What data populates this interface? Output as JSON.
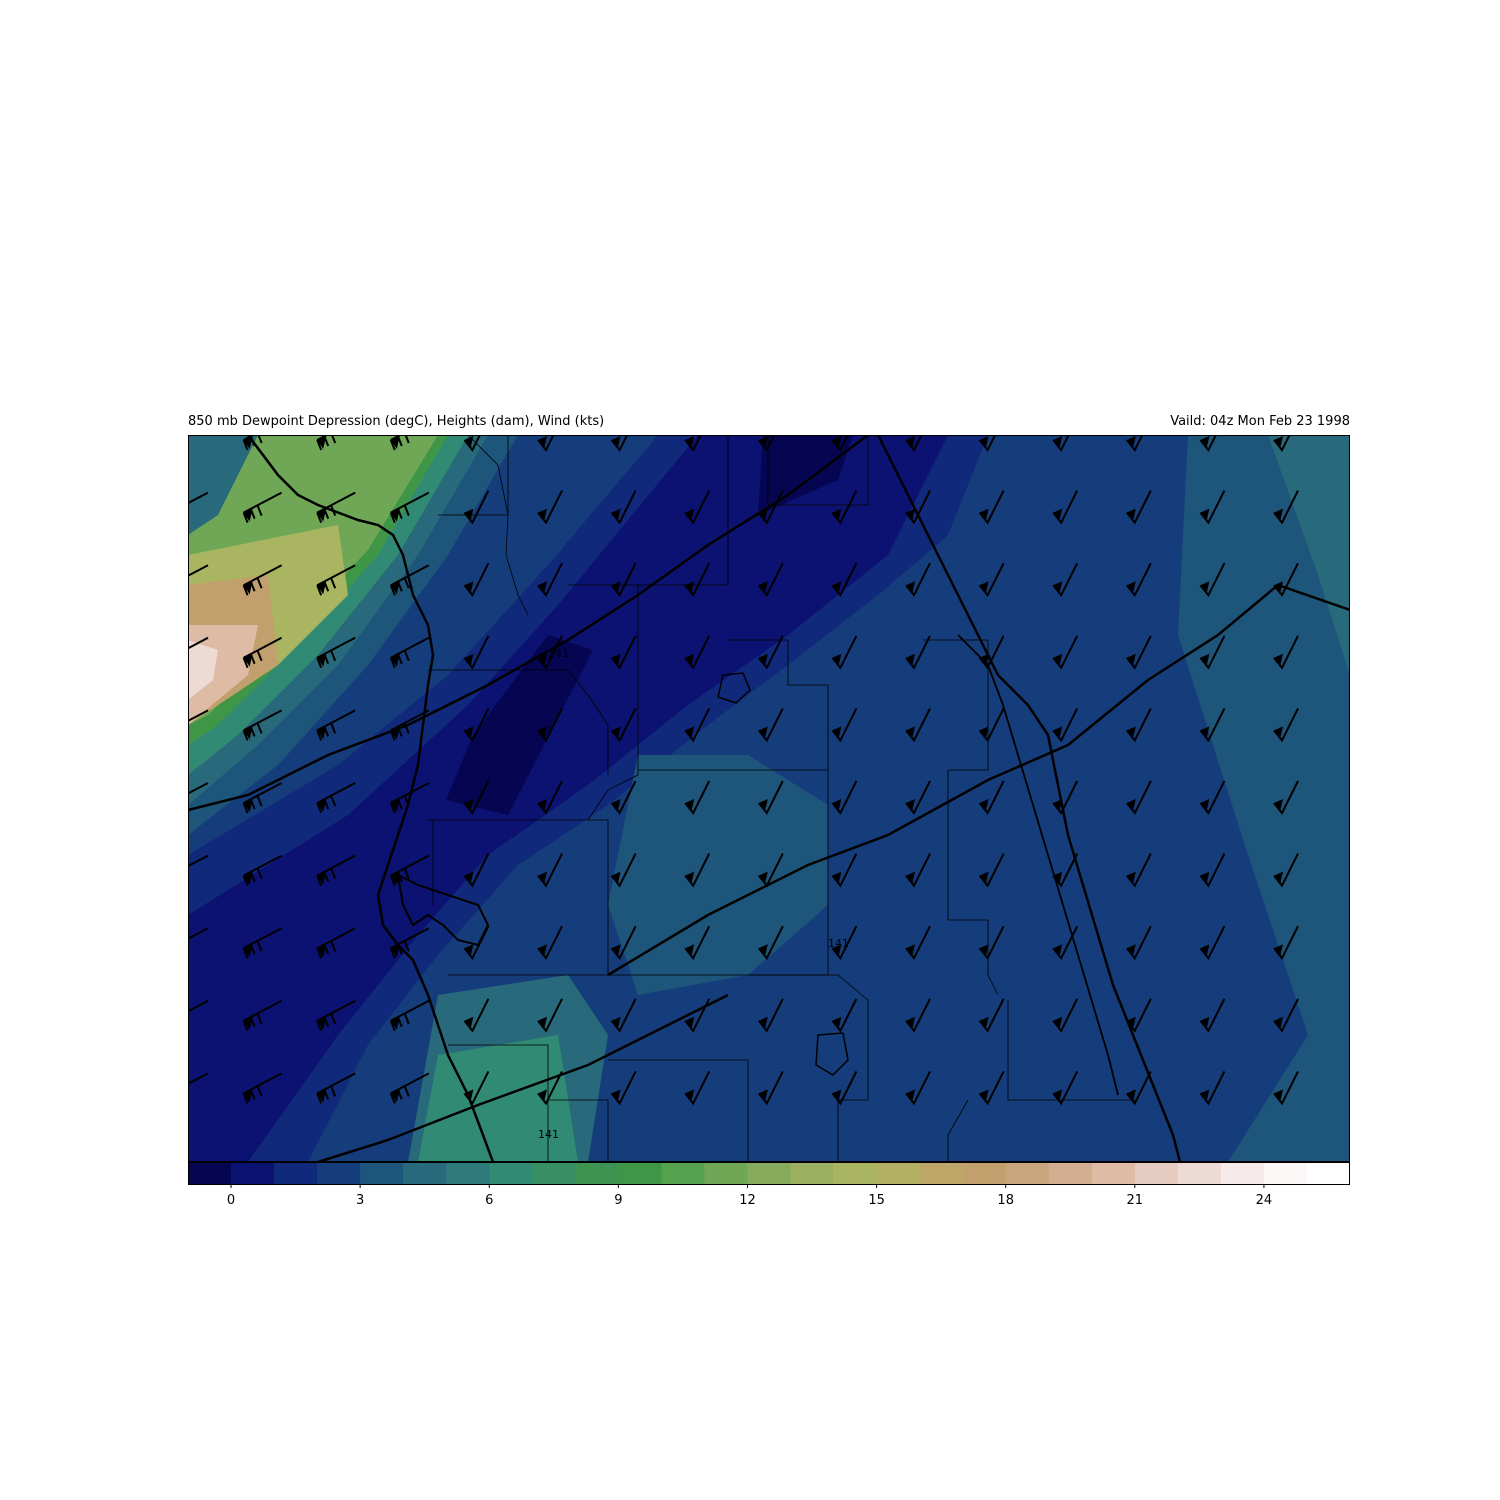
{
  "header": {
    "title_left": "850 mb Dewpoint Depression (degC), Heights (dam), Wind (kts)",
    "title_right": "Vaild: 04z Mon Feb 23 1998"
  },
  "colorbar": {
    "min": -1,
    "max": 26,
    "ticks": [
      0,
      3,
      6,
      9,
      12,
      15,
      18,
      21,
      24
    ],
    "colors": [
      "#060552",
      "#0c1271",
      "#11297a",
      "#163d7b",
      "#1e557b",
      "#286a7c",
      "#2f7b7c",
      "#318a73",
      "#378f62",
      "#3e9353",
      "#3f9647",
      "#56a14d",
      "#6fa756",
      "#87ab5c",
      "#9cb061",
      "#aab562",
      "#b4b064",
      "#bca668",
      "#c2a06e",
      "#c9a57e",
      "#d4ae91",
      "#ddbba5",
      "#e6cbc0",
      "#eedad5",
      "#f6ebea",
      "#fcf8f8",
      "#ffffff"
    ]
  },
  "map": {
    "height_labels": [
      "141",
      "141",
      "141"
    ],
    "colors": {
      "contour": "#000000",
      "barb": "#000000"
    }
  }
}
